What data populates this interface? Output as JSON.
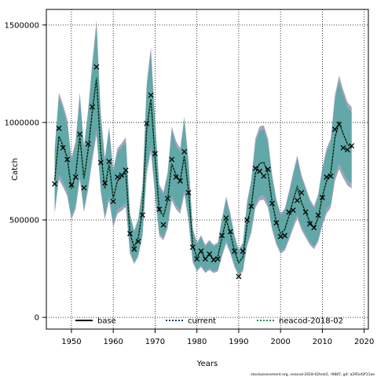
{
  "chart_data": {
    "type": "line",
    "xlabel": "Years",
    "ylabel": "Catch",
    "xlim": [
      1944,
      2021
    ],
    "ylim": [
      -60000,
      1580000
    ],
    "x_ticks": [
      1950,
      1960,
      1970,
      1980,
      1990,
      2000,
      2010,
      2020
    ],
    "y_ticks": [
      0,
      500000,
      1000000,
      1500000
    ],
    "x_tick_labels": [
      "1950",
      "1960",
      "1970",
      "1980",
      "1990",
      "2000",
      "2010",
      "2020"
    ],
    "y_tick_labels": [
      "0",
      "500000",
      "1000000",
      "1500000"
    ],
    "grid": true,
    "legend_position": "bottom",
    "x": [
      1946,
      1947,
      1948,
      1949,
      1950,
      1951,
      1952,
      1953,
      1954,
      1955,
      1956,
      1957,
      1958,
      1959,
      1960,
      1961,
      1962,
      1963,
      1964,
      1965,
      1966,
      1967,
      1968,
      1969,
      1970,
      1971,
      1972,
      1973,
      1974,
      1975,
      1976,
      1977,
      1978,
      1979,
      1980,
      1981,
      1982,
      1983,
      1984,
      1985,
      1986,
      1987,
      1988,
      1989,
      1990,
      1991,
      1992,
      1993,
      1994,
      1995,
      1996,
      1997,
      1998,
      1999,
      2000,
      2001,
      2002,
      2003,
      2004,
      2005,
      2006,
      2007,
      2008,
      2009,
      2010,
      2011,
      2012,
      2013,
      2014,
      2015,
      2016,
      2017
    ],
    "observed": [
      685000,
      970000,
      870000,
      810000,
      680000,
      720000,
      940000,
      665000,
      890000,
      1080000,
      1285000,
      795000,
      690000,
      800000,
      595000,
      720000,
      730000,
      755000,
      430000,
      350000,
      390000,
      525000,
      995000,
      1140000,
      840000,
      555000,
      475000,
      610000,
      810000,
      720000,
      700000,
      850000,
      640000,
      360000,
      300000,
      340000,
      300000,
      325000,
      295000,
      300000,
      420000,
      510000,
      440000,
      340000,
      210000,
      340000,
      500000,
      570000,
      765000,
      750000,
      725000,
      760000,
      585000,
      485000,
      415000,
      420000,
      540000,
      550000,
      600000,
      640000,
      540000,
      480000,
      460000,
      525000,
      615000,
      720000,
      725000,
      965000,
      990000,
      870000,
      860000,
      880000
    ],
    "series": [
      {
        "name": "base",
        "color": "#000000",
        "style": "solid",
        "values": [
          700000,
          930000,
          880000,
          820000,
          660000,
          730000,
          930000,
          710000,
          860000,
          1060000,
          1230000,
          850000,
          660000,
          790000,
          610000,
          700000,
          720000,
          745000,
          430000,
          360000,
          410000,
          550000,
          970000,
          1120000,
          820000,
          550000,
          520000,
          600000,
          790000,
          730000,
          700000,
          830000,
          650000,
          370000,
          310000,
          340000,
          300000,
          320000,
          300000,
          310000,
          410000,
          500000,
          430000,
          340000,
          280000,
          310000,
          480000,
          570000,
          740000,
          790000,
          795000,
          740000,
          590000,
          490000,
          430000,
          450000,
          520000,
          600000,
          670000,
          590000,
          540000,
          490000,
          460000,
          510000,
          620000,
          700000,
          740000,
          920000,
          1000000,
          940000,
          890000,
          870000
        ]
      },
      {
        "name": "current",
        "color": "#1f3b78",
        "style": "dotted",
        "values": [
          700000,
          930000,
          880000,
          820000,
          660000,
          730000,
          930000,
          710000,
          860000,
          1060000,
          1230000,
          850000,
          660000,
          790000,
          610000,
          700000,
          720000,
          745000,
          430000,
          360000,
          410000,
          550000,
          970000,
          1120000,
          820000,
          550000,
          520000,
          600000,
          790000,
          730000,
          700000,
          830000,
          650000,
          370000,
          310000,
          340000,
          300000,
          320000,
          300000,
          310000,
          410000,
          500000,
          430000,
          340000,
          280000,
          310000,
          480000,
          570000,
          740000,
          790000,
          795000,
          740000,
          590000,
          490000,
          430000,
          450000,
          520000,
          600000,
          670000,
          590000,
          540000,
          490000,
          460000,
          510000,
          620000,
          700000,
          740000,
          920000,
          1000000,
          940000,
          890000,
          870000
        ]
      },
      {
        "name": "neacod-2018-02",
        "color": "#2e8b57",
        "style": "dotted",
        "values": [
          700000,
          930000,
          880000,
          820000,
          660000,
          730000,
          930000,
          710000,
          860000,
          1060000,
          1230000,
          850000,
          660000,
          790000,
          610000,
          700000,
          720000,
          745000,
          430000,
          360000,
          410000,
          550000,
          970000,
          1120000,
          820000,
          550000,
          520000,
          600000,
          790000,
          730000,
          700000,
          830000,
          650000,
          370000,
          310000,
          340000,
          300000,
          320000,
          300000,
          310000,
          410000,
          500000,
          430000,
          340000,
          280000,
          310000,
          480000,
          570000,
          740000,
          790000,
          795000,
          740000,
          590000,
          490000,
          430000,
          450000,
          520000,
          600000,
          670000,
          590000,
          540000,
          490000,
          460000,
          510000,
          620000,
          700000,
          740000,
          920000,
          1000000,
          940000,
          890000,
          870000
        ]
      }
    ],
    "band_spread": 0.21,
    "band_color": "#5fa8a8",
    "band_edge_color": "#7a7f9e",
    "legend": [
      "base",
      "current",
      "neacod-2018-02"
    ],
    "caption": "stockassessment.org, neacod-2018-02test2, r9887, git: a295ef2f11ae"
  }
}
